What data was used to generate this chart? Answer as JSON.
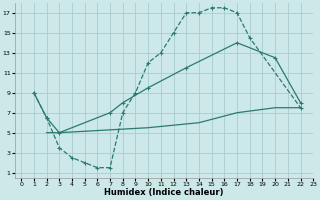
{
  "bg_color": "#cce8e8",
  "grid_color": "#aacccc",
  "line_color": "#2a7a70",
  "xlabel": "Humidex (Indice chaleur)",
  "xlim": [
    -0.5,
    23
  ],
  "ylim": [
    0.5,
    18
  ],
  "xticks": [
    0,
    1,
    2,
    3,
    4,
    5,
    6,
    7,
    8,
    9,
    10,
    11,
    12,
    13,
    14,
    15,
    16,
    17,
    18,
    19,
    20,
    21,
    22,
    23
  ],
  "yticks": [
    1,
    3,
    5,
    7,
    9,
    11,
    13,
    15,
    17
  ],
  "line1_x": [
    1,
    2,
    3,
    4,
    5,
    6,
    7,
    8,
    9,
    10,
    11,
    12,
    13,
    14,
    15,
    16,
    17,
    18,
    22
  ],
  "line1_y": [
    9,
    6.5,
    3.5,
    2.5,
    2,
    1.5,
    1.5,
    7,
    9,
    12,
    13,
    15,
    17,
    17,
    17.5,
    17.5,
    17,
    14.5,
    7.5
  ],
  "line2_x": [
    1,
    2,
    3,
    7,
    8,
    10,
    13,
    17,
    20,
    22
  ],
  "line2_y": [
    9,
    6.5,
    5,
    7,
    8,
    9.5,
    11.5,
    14,
    12.5,
    8
  ],
  "line3_x": [
    2,
    3,
    10,
    14,
    17,
    20,
    22
  ],
  "line3_y": [
    5,
    5,
    5.5,
    6,
    7,
    7.5,
    7.5
  ]
}
